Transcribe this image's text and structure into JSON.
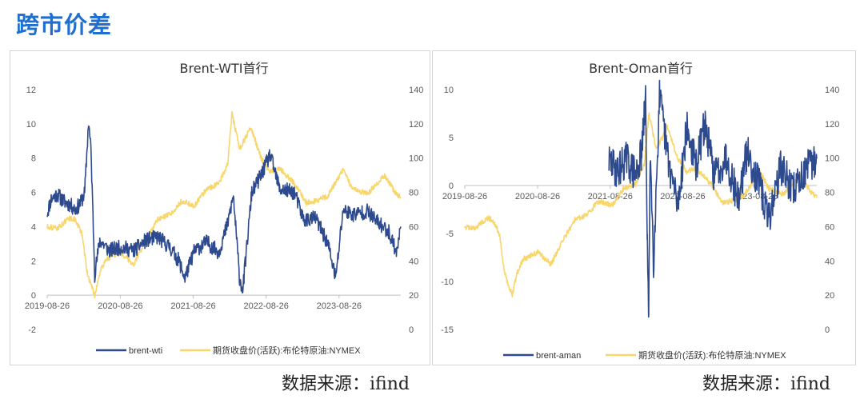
{
  "page": {
    "title": "跨市价差"
  },
  "charts": [
    {
      "source": "数据来源：ifind"
    },
    {
      "source": "数据来源：ifind"
    }
  ],
  "colors": {
    "spread": "#2e4a8e",
    "price": "#f8d66b",
    "axis": "#bfbfbf",
    "text": "#595959"
  },
  "chart_data": [
    {
      "type": "line",
      "title": "Brent-WTI首行",
      "x_ticks": [
        "2019-08-26",
        "2020-08-26",
        "2021-08-26",
        "2022-08-26",
        "2023-08-26"
      ],
      "x_range": [
        "2019-08-26",
        "2024-06-30"
      ],
      "y_left": {
        "min": -2,
        "max": 12,
        "ticks": [
          -2,
          0,
          2,
          4,
          6,
          8,
          10,
          12
        ]
      },
      "y_right": {
        "min": 0,
        "max": 140,
        "ticks": [
          0,
          20,
          40,
          60,
          80,
          100,
          120,
          140
        ]
      },
      "legend_placement": "bottom",
      "series": [
        {
          "name": "brent-wti",
          "axis": "left",
          "points": [
            [
              "2019-08-26",
              4.8
            ],
            [
              "2019-09-15",
              5.6
            ],
            [
              "2019-10-15",
              5.9
            ],
            [
              "2019-11-15",
              5.5
            ],
            [
              "2019-12-15",
              5.3
            ],
            [
              "2020-01-15",
              5.0
            ],
            [
              "2020-02-10",
              5.4
            ],
            [
              "2020-03-01",
              6.0
            ],
            [
              "2020-03-20",
              10.1
            ],
            [
              "2020-04-01",
              8.5
            ],
            [
              "2020-04-20",
              1.2
            ],
            [
              "2020-05-15",
              3.2
            ],
            [
              "2020-07-01",
              2.6
            ],
            [
              "2020-09-01",
              2.8
            ],
            [
              "2020-11-01",
              2.6
            ],
            [
              "2021-01-01",
              3.2
            ],
            [
              "2021-03-01",
              3.4
            ],
            [
              "2021-05-01",
              2.8
            ],
            [
              "2021-06-15",
              2.0
            ],
            [
              "2021-07-15",
              1.0
            ],
            [
              "2021-09-01",
              2.6
            ],
            [
              "2021-11-01",
              3.1
            ],
            [
              "2022-01-01",
              2.5
            ],
            [
              "2022-02-15",
              4.2
            ],
            [
              "2022-03-15",
              5.8
            ],
            [
              "2022-04-15",
              1.0
            ],
            [
              "2022-05-01",
              0.3
            ],
            [
              "2022-06-15",
              6.0
            ],
            [
              "2022-08-01",
              7.0
            ],
            [
              "2022-09-15",
              8.2
            ],
            [
              "2022-11-01",
              6.2
            ],
            [
              "2023-01-15",
              6.0
            ],
            [
              "2023-03-01",
              4.4
            ],
            [
              "2023-05-01",
              4.5
            ],
            [
              "2023-07-01",
              3.0
            ],
            [
              "2023-08-10",
              1.0
            ],
            [
              "2023-09-15",
              5.0
            ],
            [
              "2023-11-01",
              4.7
            ],
            [
              "2024-01-15",
              4.9
            ],
            [
              "2024-03-01",
              4.3
            ],
            [
              "2024-05-01",
              3.7
            ],
            [
              "2024-06-10",
              2.5
            ],
            [
              "2024-06-30",
              4.0
            ]
          ]
        },
        {
          "name": "期货收盘价(活跃):布伦特原油:NYMEX",
          "axis": "right",
          "points": [
            [
              "2019-08-26",
              60
            ],
            [
              "2019-10-15",
              59
            ],
            [
              "2019-12-15",
              65
            ],
            [
              "2020-01-15",
              64
            ],
            [
              "2020-02-15",
              56
            ],
            [
              "2020-03-15",
              32
            ],
            [
              "2020-04-20",
              20
            ],
            [
              "2020-05-15",
              33
            ],
            [
              "2020-06-15",
              41
            ],
            [
              "2020-08-26",
              45
            ],
            [
              "2020-11-01",
              38
            ],
            [
              "2021-01-01",
              52
            ],
            [
              "2021-03-01",
              64
            ],
            [
              "2021-05-01",
              67
            ],
            [
              "2021-07-01",
              75
            ],
            [
              "2021-09-01",
              72
            ],
            [
              "2021-11-01",
              82
            ],
            [
              "2022-01-01",
              85
            ],
            [
              "2022-02-15",
              97
            ],
            [
              "2022-03-08",
              126
            ],
            [
              "2022-04-15",
              105
            ],
            [
              "2022-06-10",
              118
            ],
            [
              "2022-08-01",
              100
            ],
            [
              "2022-09-15",
              92
            ],
            [
              "2022-11-01",
              94
            ],
            [
              "2023-01-15",
              85
            ],
            [
              "2023-03-15",
              74
            ],
            [
              "2023-05-01",
              75
            ],
            [
              "2023-07-01",
              78
            ],
            [
              "2023-09-15",
              93
            ],
            [
              "2023-11-01",
              82
            ],
            [
              "2024-01-15",
              79
            ],
            [
              "2024-04-10",
              90
            ],
            [
              "2024-06-01",
              80
            ],
            [
              "2024-06-30",
              77
            ]
          ]
        }
      ]
    },
    {
      "type": "line",
      "title": "Brent-Oman首行",
      "x_ticks": [
        "2019-08-26",
        "2020-08-26",
        "2021-08-26",
        "2022-08-26",
        "2023-08-26"
      ],
      "x_range": [
        "2019-08-26",
        "2024-06-30"
      ],
      "y_left": {
        "min": -15,
        "max": 10,
        "ticks": [
          -15,
          -10,
          -5,
          0,
          5,
          10
        ]
      },
      "y_right": {
        "min": 0,
        "max": 140,
        "ticks": [
          0,
          20,
          40,
          60,
          80,
          100,
          120,
          140
        ]
      },
      "legend_placement": "bottom",
      "series": [
        {
          "name": "brent-aman",
          "axis": "left",
          "points": [
            [
              "2021-08-20",
              2.5
            ],
            [
              "2021-10-01",
              1.5
            ],
            [
              "2021-11-15",
              2.8
            ],
            [
              "2022-01-01",
              1.0
            ],
            [
              "2022-02-01",
              3.5
            ],
            [
              "2022-02-20",
              9.0
            ],
            [
              "2022-03-01",
              -6.0
            ],
            [
              "2022-03-08",
              -15.0
            ],
            [
              "2022-03-15",
              4.0
            ],
            [
              "2022-04-01",
              -8.0
            ],
            [
              "2022-05-01",
              9.3
            ],
            [
              "2022-06-15",
              2.5
            ],
            [
              "2022-08-01",
              -2.0
            ],
            [
              "2022-09-15",
              6.0
            ],
            [
              "2022-11-01",
              2.0
            ],
            [
              "2022-12-15",
              6.5
            ],
            [
              "2023-02-01",
              1.0
            ],
            [
              "2023-04-01",
              3.0
            ],
            [
              "2023-06-01",
              -1.5
            ],
            [
              "2023-07-15",
              3.5
            ],
            [
              "2023-09-15",
              0.0
            ],
            [
              "2023-11-01",
              -3.5
            ],
            [
              "2024-01-01",
              2.0
            ],
            [
              "2024-03-01",
              -0.5
            ],
            [
              "2024-05-01",
              1.5
            ],
            [
              "2024-06-30",
              2.8
            ]
          ]
        },
        {
          "name": "期货收盘价(活跃):布伦特原油:NYMEX",
          "axis": "right",
          "points": [
            [
              "2019-08-26",
              60
            ],
            [
              "2019-10-15",
              59
            ],
            [
              "2019-12-15",
              65
            ],
            [
              "2020-01-15",
              64
            ],
            [
              "2020-02-15",
              56
            ],
            [
              "2020-03-15",
              32
            ],
            [
              "2020-04-20",
              20
            ],
            [
              "2020-05-15",
              33
            ],
            [
              "2020-06-15",
              41
            ],
            [
              "2020-08-26",
              45
            ],
            [
              "2020-11-01",
              38
            ],
            [
              "2021-01-01",
              52
            ],
            [
              "2021-03-01",
              64
            ],
            [
              "2021-05-01",
              67
            ],
            [
              "2021-07-01",
              75
            ],
            [
              "2021-09-01",
              72
            ],
            [
              "2021-11-01",
              82
            ],
            [
              "2022-01-01",
              85
            ],
            [
              "2022-02-15",
              97
            ],
            [
              "2022-03-08",
              126
            ],
            [
              "2022-04-15",
              105
            ],
            [
              "2022-06-10",
              118
            ],
            [
              "2022-08-01",
              100
            ],
            [
              "2022-09-15",
              92
            ],
            [
              "2022-11-01",
              94
            ],
            [
              "2023-01-15",
              85
            ],
            [
              "2023-03-15",
              74
            ],
            [
              "2023-05-01",
              75
            ],
            [
              "2023-07-01",
              78
            ],
            [
              "2023-09-15",
              93
            ],
            [
              "2023-11-01",
              82
            ],
            [
              "2024-01-15",
              79
            ],
            [
              "2024-04-10",
              90
            ],
            [
              "2024-06-01",
              80
            ],
            [
              "2024-06-30",
              77
            ]
          ]
        }
      ]
    }
  ]
}
